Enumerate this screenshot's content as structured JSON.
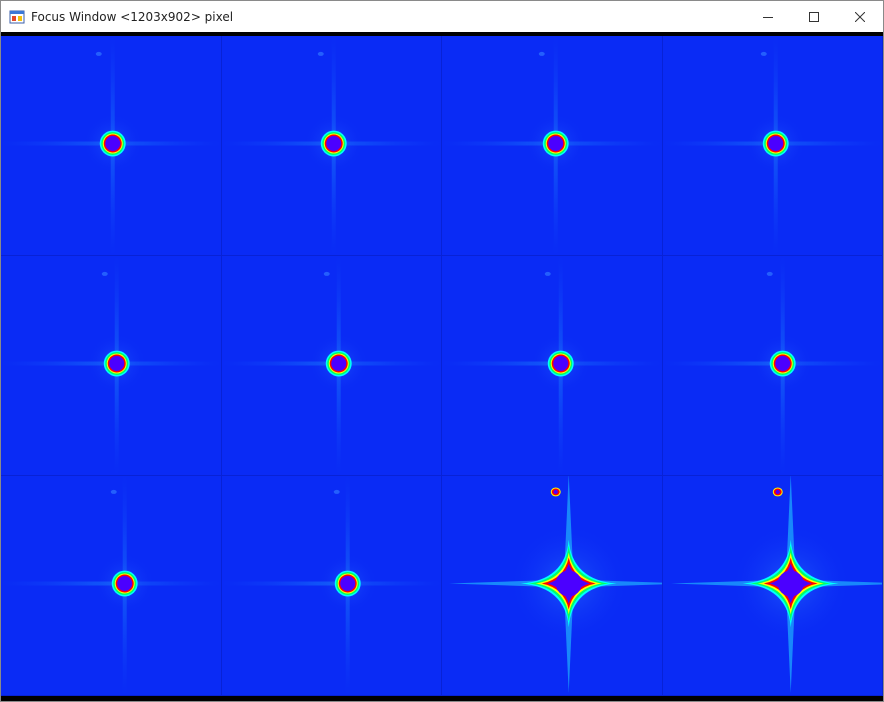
{
  "window": {
    "title": "Focus Window <1203x902> pixel",
    "app_icon": "app-window-icon",
    "buttons": [
      "minimize-icon",
      "maximize-icon",
      "close-icon"
    ]
  },
  "colors": {
    "background": "#0a2bf5",
    "spot_core": "#4b00ff",
    "ring_colors": [
      "#ff0000",
      "#ffff00",
      "#00ff66",
      "#00ffff"
    ]
  },
  "grid": {
    "rows": 3,
    "columns": 4
  },
  "frames": [
    {
      "type": "ring"
    },
    {
      "type": "ring"
    },
    {
      "type": "ring"
    },
    {
      "type": "ring"
    },
    {
      "type": "ring"
    },
    {
      "type": "ring"
    },
    {
      "type": "ring"
    },
    {
      "type": "ring"
    },
    {
      "type": "ring"
    },
    {
      "type": "ring"
    },
    {
      "type": "star"
    },
    {
      "type": "star"
    }
  ]
}
